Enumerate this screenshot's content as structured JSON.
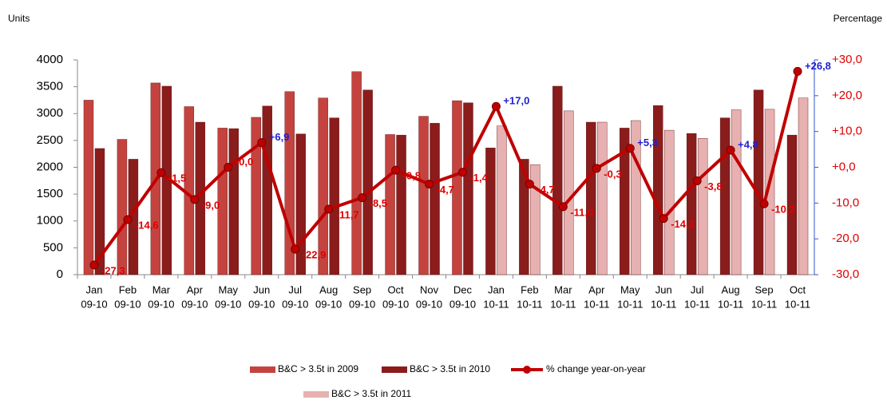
{
  "chart_data": {
    "type": "bar-line",
    "y_label": "Units",
    "y2_label": "Percentage",
    "categories": [
      [
        "Jan",
        "09-10"
      ],
      [
        "Feb",
        "09-10"
      ],
      [
        "Mar",
        "09-10"
      ],
      [
        "Apr",
        "09-10"
      ],
      [
        "May",
        "09-10"
      ],
      [
        "Jun",
        "09-10"
      ],
      [
        "Jul",
        "09-10"
      ],
      [
        "Aug",
        "09-10"
      ],
      [
        "Sep",
        "09-10"
      ],
      [
        "Oct",
        "09-10"
      ],
      [
        "Nov",
        "09-10"
      ],
      [
        "Dec",
        "09-10"
      ],
      [
        "Jan",
        "10-11"
      ],
      [
        "Feb",
        "10-11"
      ],
      [
        "Mar",
        "10-11"
      ],
      [
        "Apr",
        "10-11"
      ],
      [
        "May",
        "10-11"
      ],
      [
        "Jun",
        "10-11"
      ],
      [
        "Jul",
        "10-11"
      ],
      [
        "Aug",
        "10-11"
      ],
      [
        "Sep",
        "10-11"
      ],
      [
        "Oct",
        "10-11"
      ]
    ],
    "series": [
      {
        "name": "B&C > 3.5t in 2009",
        "type": "bar",
        "slot": "left",
        "color": "#c4433f",
        "values": [
          3250,
          2520,
          3570,
          3130,
          2730,
          2930,
          3410,
          3290,
          3780,
          2610,
          2950,
          3240,
          null,
          null,
          null,
          null,
          null,
          null,
          null,
          null,
          null,
          null
        ]
      },
      {
        "name": "B&C > 3.5t in 2010",
        "type": "bar",
        "slot": "mixed",
        "color": "#8a1c1c",
        "values": [
          2350,
          2150,
          3510,
          2840,
          2720,
          3140,
          2620,
          2920,
          3440,
          2600,
          2820,
          3200,
          2360,
          2150,
          3510,
          2840,
          2730,
          3150,
          2630,
          2920,
          3440,
          2600
        ]
      },
      {
        "name": "% change year-on-year",
        "type": "line",
        "axis": "y2",
        "color": "#c00000",
        "values": [
          -27.3,
          -14.6,
          -1.5,
          -9.0,
          0,
          6.9,
          -22.9,
          -11.7,
          -8.5,
          -0.8,
          -4.7,
          -1.4,
          17.0,
          -4.7,
          -11.0,
          -0.3,
          5.3,
          -14.3,
          -3.8,
          4.8,
          -10.2,
          26.8
        ],
        "value_labels": [
          "-27,3",
          "-14,6",
          "-1,5",
          "-9,0",
          "-0,0",
          "+6,9",
          "-22,9",
          "-11,7",
          "-8,5",
          "-0,8",
          "-4,7",
          "-1,4",
          "+17,0",
          "-4,7",
          "-11,0",
          "-0,3",
          "+5,3",
          "-14,3",
          "-3,8",
          "+4,8",
          "-10,2",
          "+26,8"
        ]
      },
      {
        "name": "B&C > 3.5t in 2011",
        "type": "bar",
        "slot": "right",
        "color": "#e6b1b0",
        "values": [
          null,
          null,
          null,
          null,
          null,
          null,
          null,
          null,
          null,
          null,
          null,
          null,
          2770,
          2050,
          3050,
          2840,
          2870,
          2690,
          2540,
          3070,
          3080,
          3290
        ]
      }
    ],
    "ylim": [
      0,
      4000
    ],
    "yticks": [
      0,
      500,
      1000,
      1500,
      2000,
      2500,
      3000,
      3500,
      4000
    ],
    "y2lim": [
      -30,
      30
    ],
    "y2ticks": [
      {
        "value": -30,
        "label": "-30,0"
      },
      {
        "value": -20,
        "label": "-20,0"
      },
      {
        "value": -10,
        "label": "-10,0"
      },
      {
        "value": 0,
        "label": "+0,0"
      },
      {
        "value": 10,
        "label": "+10,0"
      },
      {
        "value": 20,
        "label": "+20,0"
      },
      {
        "value": 30,
        "label": "+30,0"
      }
    ],
    "positive_label_color": "#1f1fd0",
    "negative_label_color": "#e00000",
    "grid": false
  }
}
